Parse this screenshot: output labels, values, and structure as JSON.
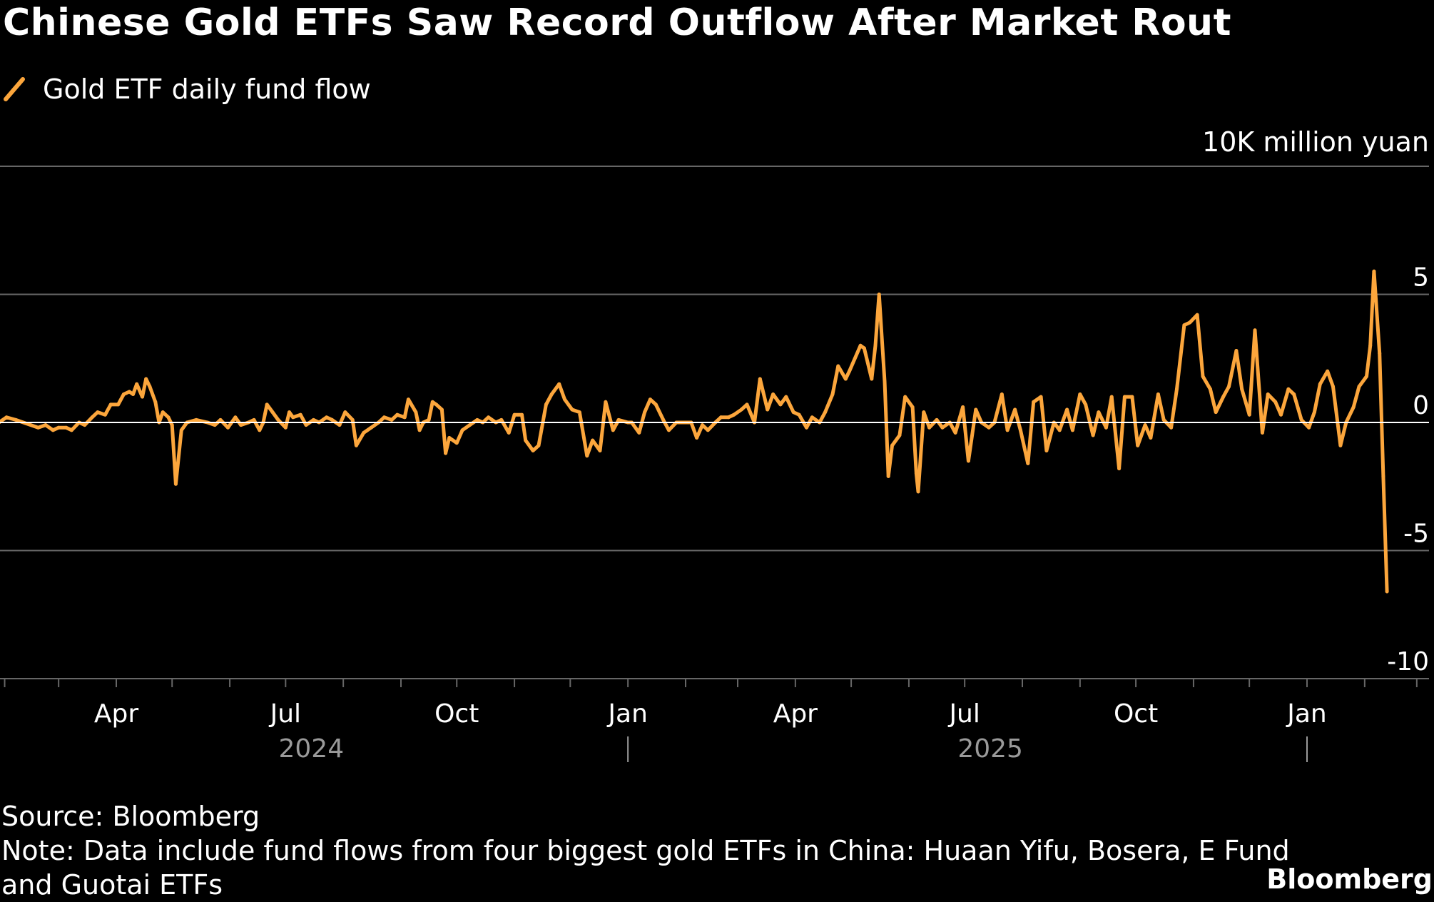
{
  "title": "Chinese Gold ETFs Saw Record Outflow After Market Rout",
  "source": "Source: Bloomberg",
  "note_line1": "Note: Data include fund flows from four biggest gold ETFs in China: Huaan Yifu, Bosera, E Fund",
  "note_line2": "and Guotai ETFs",
  "brand": "Bloomberg",
  "colors": {
    "background": "#000000",
    "series": "#fca63c",
    "grid": "#666666",
    "zero_line": "#ffffff",
    "axis_text": "#ffffff",
    "year_text": "#9a9a9a"
  },
  "chart_data": {
    "type": "line",
    "title": "Chinese Gold ETFs Saw Record Outflow After Market Rout",
    "ylabel": "10K million yuan",
    "ylim": [
      -10,
      10
    ],
    "yticks": [
      10,
      5,
      0,
      -5,
      -10
    ],
    "ytick_labels": [
      "",
      "5",
      "0",
      "-5",
      "-10"
    ],
    "xlim": [
      "2024-01-01",
      "2026-02-28"
    ],
    "xticks": [
      {
        "date": "2024-04-01",
        "label": "Apr"
      },
      {
        "date": "2024-07-01",
        "label": "Jul"
      },
      {
        "date": "2024-10-01",
        "label": "Oct"
      },
      {
        "date": "2025-01-01",
        "label": "Jan"
      },
      {
        "date": "2025-04-01",
        "label": "Apr"
      },
      {
        "date": "2025-07-01",
        "label": "Jul"
      },
      {
        "date": "2025-10-01",
        "label": "Oct"
      },
      {
        "date": "2026-01-01",
        "label": "Jan"
      }
    ],
    "year_labels": [
      {
        "date": "2024-07-01",
        "label": "2024"
      },
      {
        "date": "2025-07-01",
        "label": "2025"
      }
    ],
    "year_separators": [
      "2025-01-01",
      "2026-01-01"
    ],
    "grid": true,
    "legend": "top-left",
    "series": [
      {
        "name": "Gold ETF daily fund flow",
        "color": "#fca63c",
        "points": [
          [
            "2024-01-02",
            0.0
          ],
          [
            "2024-01-05",
            -0.1
          ],
          [
            "2024-01-10",
            0.0
          ],
          [
            "2024-01-16",
            0.0
          ],
          [
            "2024-01-22",
            0.0
          ],
          [
            "2024-01-29",
            0.0
          ],
          [
            "2024-02-02",
            0.2
          ],
          [
            "2024-02-07",
            0.1
          ],
          [
            "2024-02-19",
            -0.2
          ],
          [
            "2024-02-23",
            -0.1
          ],
          [
            "2024-02-27",
            -0.3
          ],
          [
            "2024-03-01",
            -0.2
          ],
          [
            "2024-03-05",
            -0.2
          ],
          [
            "2024-03-08",
            -0.3
          ],
          [
            "2024-03-12",
            0.0
          ],
          [
            "2024-03-15",
            -0.1
          ],
          [
            "2024-03-19",
            0.2
          ],
          [
            "2024-03-22",
            0.4
          ],
          [
            "2024-03-26",
            0.3
          ],
          [
            "2024-03-29",
            0.7
          ],
          [
            "2024-04-02",
            0.7
          ],
          [
            "2024-04-05",
            1.1
          ],
          [
            "2024-04-08",
            1.2
          ],
          [
            "2024-04-10",
            1.1
          ],
          [
            "2024-04-12",
            1.5
          ],
          [
            "2024-04-15",
            1.0
          ],
          [
            "2024-04-17",
            1.7
          ],
          [
            "2024-04-19",
            1.4
          ],
          [
            "2024-04-22",
            0.8
          ],
          [
            "2024-04-24",
            0.0
          ],
          [
            "2024-04-26",
            0.4
          ],
          [
            "2024-04-29",
            0.2
          ],
          [
            "2024-05-01",
            -0.1
          ],
          [
            "2024-05-03",
            -2.4
          ],
          [
            "2024-05-06",
            -0.3
          ],
          [
            "2024-05-09",
            0.0
          ],
          [
            "2024-05-14",
            0.1
          ],
          [
            "2024-05-20",
            0.0
          ],
          [
            "2024-05-24",
            -0.1
          ],
          [
            "2024-05-27",
            0.1
          ],
          [
            "2024-05-31",
            -0.2
          ],
          [
            "2024-06-04",
            0.2
          ],
          [
            "2024-06-07",
            -0.1
          ],
          [
            "2024-06-11",
            0.0
          ],
          [
            "2024-06-14",
            0.1
          ],
          [
            "2024-06-17",
            -0.3
          ],
          [
            "2024-06-19",
            0.0
          ],
          [
            "2024-06-21",
            0.7
          ],
          [
            "2024-06-24",
            0.4
          ],
          [
            "2024-06-27",
            0.1
          ],
          [
            "2024-07-01",
            -0.2
          ],
          [
            "2024-07-03",
            0.4
          ],
          [
            "2024-07-05",
            0.2
          ],
          [
            "2024-07-09",
            0.3
          ],
          [
            "2024-07-12",
            -0.1
          ],
          [
            "2024-07-16",
            0.1
          ],
          [
            "2024-07-19",
            0.0
          ],
          [
            "2024-07-23",
            0.2
          ],
          [
            "2024-07-26",
            0.1
          ],
          [
            "2024-07-30",
            -0.1
          ],
          [
            "2024-08-02",
            0.4
          ],
          [
            "2024-08-06",
            0.1
          ],
          [
            "2024-08-08",
            -0.9
          ],
          [
            "2024-08-12",
            -0.4
          ],
          [
            "2024-08-16",
            -0.2
          ],
          [
            "2024-08-20",
            0.0
          ],
          [
            "2024-08-23",
            0.2
          ],
          [
            "2024-08-27",
            0.1
          ],
          [
            "2024-08-30",
            0.3
          ],
          [
            "2024-09-03",
            0.2
          ],
          [
            "2024-09-05",
            0.9
          ],
          [
            "2024-09-09",
            0.4
          ],
          [
            "2024-09-11",
            -0.3
          ],
          [
            "2024-09-13",
            0.0
          ],
          [
            "2024-09-16",
            0.1
          ],
          [
            "2024-09-18",
            0.8
          ],
          [
            "2024-09-20",
            0.7
          ],
          [
            "2024-09-23",
            0.5
          ],
          [
            "2024-09-25",
            -1.2
          ],
          [
            "2024-09-27",
            -0.6
          ],
          [
            "2024-10-01",
            -0.8
          ],
          [
            "2024-10-04",
            -0.3
          ],
          [
            "2024-10-08",
            -0.1
          ],
          [
            "2024-10-12",
            0.1
          ],
          [
            "2024-10-15",
            0.0
          ],
          [
            "2024-10-18",
            0.2
          ],
          [
            "2024-10-22",
            0.0
          ],
          [
            "2024-10-25",
            0.1
          ],
          [
            "2024-10-29",
            -0.4
          ],
          [
            "2024-11-01",
            0.3
          ],
          [
            "2024-11-05",
            0.3
          ],
          [
            "2024-11-07",
            -0.7
          ],
          [
            "2024-11-11",
            -1.1
          ],
          [
            "2024-11-14",
            -0.9
          ],
          [
            "2024-11-18",
            0.7
          ],
          [
            "2024-11-21",
            1.1
          ],
          [
            "2024-11-25",
            1.5
          ],
          [
            "2024-11-28",
            0.9
          ],
          [
            "2024-12-02",
            0.5
          ],
          [
            "2024-12-06",
            0.4
          ],
          [
            "2024-12-10",
            -1.3
          ],
          [
            "2024-12-13",
            -0.7
          ],
          [
            "2024-12-17",
            -1.1
          ],
          [
            "2024-12-20",
            0.8
          ],
          [
            "2024-12-24",
            -0.3
          ],
          [
            "2024-12-27",
            0.1
          ],
          [
            "2025-01-01",
            0.0
          ],
          [
            "2025-01-03",
            0.0
          ],
          [
            "2025-01-07",
            -0.4
          ],
          [
            "2025-01-10",
            0.4
          ],
          [
            "2025-01-13",
            0.9
          ],
          [
            "2025-01-16",
            0.7
          ],
          [
            "2025-01-20",
            0.1
          ],
          [
            "2025-01-23",
            -0.3
          ],
          [
            "2025-01-27",
            0.0
          ],
          [
            "2025-02-04",
            0.0
          ],
          [
            "2025-02-07",
            -0.6
          ],
          [
            "2025-02-10",
            -0.1
          ],
          [
            "2025-02-13",
            -0.3
          ],
          [
            "2025-02-17",
            0.0
          ],
          [
            "2025-02-20",
            0.2
          ],
          [
            "2025-02-24",
            0.2
          ],
          [
            "2025-02-27",
            0.3
          ],
          [
            "2025-03-03",
            0.5
          ],
          [
            "2025-03-06",
            0.7
          ],
          [
            "2025-03-10",
            0.0
          ],
          [
            "2025-03-13",
            1.7
          ],
          [
            "2025-03-17",
            0.5
          ],
          [
            "2025-03-20",
            1.1
          ],
          [
            "2025-03-24",
            0.7
          ],
          [
            "2025-03-27",
            1.0
          ],
          [
            "2025-03-31",
            0.4
          ],
          [
            "2025-04-03",
            0.3
          ],
          [
            "2025-04-07",
            -0.2
          ],
          [
            "2025-04-10",
            0.2
          ],
          [
            "2025-04-14",
            0.0
          ],
          [
            "2025-04-17",
            0.4
          ],
          [
            "2025-04-21",
            1.1
          ],
          [
            "2025-04-24",
            2.2
          ],
          [
            "2025-04-28",
            1.7
          ],
          [
            "2025-04-30",
            2.0
          ],
          [
            "2025-05-06",
            3.0
          ],
          [
            "2025-05-08",
            2.9
          ],
          [
            "2025-05-12",
            1.7
          ],
          [
            "2025-05-14",
            3.0
          ],
          [
            "2025-05-16",
            5.0
          ],
          [
            "2025-05-19",
            1.6
          ],
          [
            "2025-05-21",
            -2.1
          ],
          [
            "2025-05-23",
            -0.9
          ],
          [
            "2025-05-27",
            -0.5
          ],
          [
            "2025-05-30",
            1.0
          ],
          [
            "2025-06-03",
            0.6
          ],
          [
            "2025-06-05",
            -2.0
          ],
          [
            "2025-06-06",
            -2.7
          ],
          [
            "2025-06-09",
            0.4
          ],
          [
            "2025-06-12",
            -0.2
          ],
          [
            "2025-06-16",
            0.1
          ],
          [
            "2025-06-19",
            -0.2
          ],
          [
            "2025-06-23",
            0.0
          ],
          [
            "2025-06-26",
            -0.4
          ],
          [
            "2025-06-30",
            0.6
          ],
          [
            "2025-07-03",
            -1.5
          ],
          [
            "2025-07-07",
            0.5
          ],
          [
            "2025-07-10",
            0.0
          ],
          [
            "2025-07-14",
            -0.2
          ],
          [
            "2025-07-17",
            0.0
          ],
          [
            "2025-07-21",
            1.1
          ],
          [
            "2025-07-24",
            -0.3
          ],
          [
            "2025-07-28",
            0.5
          ],
          [
            "2025-07-31",
            -0.3
          ],
          [
            "2025-08-04",
            -1.6
          ],
          [
            "2025-08-07",
            0.8
          ],
          [
            "2025-08-11",
            1.0
          ],
          [
            "2025-08-14",
            -1.1
          ],
          [
            "2025-08-18",
            0.0
          ],
          [
            "2025-08-21",
            -0.3
          ],
          [
            "2025-08-25",
            0.5
          ],
          [
            "2025-08-28",
            -0.3
          ],
          [
            "2025-09-01",
            1.1
          ],
          [
            "2025-09-04",
            0.7
          ],
          [
            "2025-09-08",
            -0.5
          ],
          [
            "2025-09-11",
            0.4
          ],
          [
            "2025-09-15",
            -0.2
          ],
          [
            "2025-09-18",
            1.0
          ],
          [
            "2025-09-22",
            -1.8
          ],
          [
            "2025-09-25",
            1.0
          ],
          [
            "2025-09-29",
            1.0
          ],
          [
            "2025-10-02",
            -0.9
          ],
          [
            "2025-10-06",
            -0.1
          ],
          [
            "2025-10-09",
            -0.6
          ],
          [
            "2025-10-13",
            1.1
          ],
          [
            "2025-10-16",
            0.1
          ],
          [
            "2025-10-20",
            -0.2
          ],
          [
            "2025-10-23",
            1.3
          ],
          [
            "2025-10-27",
            3.8
          ],
          [
            "2025-10-30",
            3.9
          ],
          [
            "2025-11-03",
            4.2
          ],
          [
            "2025-11-06",
            1.8
          ],
          [
            "2025-11-10",
            1.3
          ],
          [
            "2025-11-13",
            0.4
          ],
          [
            "2025-11-17",
            1.0
          ],
          [
            "2025-11-20",
            1.4
          ],
          [
            "2025-11-24",
            2.8
          ],
          [
            "2025-11-27",
            1.3
          ],
          [
            "2025-12-01",
            0.3
          ],
          [
            "2025-12-04",
            3.6
          ],
          [
            "2025-12-08",
            -0.4
          ],
          [
            "2025-12-11",
            1.1
          ],
          [
            "2025-12-15",
            0.8
          ],
          [
            "2025-12-18",
            0.3
          ],
          [
            "2025-12-22",
            1.3
          ],
          [
            "2025-12-25",
            1.1
          ],
          [
            "2025-12-29",
            0.1
          ],
          [
            "2026-01-02",
            -0.2
          ],
          [
            "2026-01-05",
            0.4
          ],
          [
            "2026-01-08",
            1.5
          ],
          [
            "2026-01-12",
            2.0
          ],
          [
            "2026-01-15",
            1.4
          ],
          [
            "2026-01-19",
            -0.9
          ],
          [
            "2026-01-22",
            0.0
          ],
          [
            "2026-01-26",
            0.6
          ],
          [
            "2026-01-29",
            1.4
          ],
          [
            "2026-02-02",
            1.8
          ],
          [
            "2026-02-04",
            3.0
          ],
          [
            "2026-02-06",
            5.9
          ],
          [
            "2026-02-09",
            2.7
          ],
          [
            "2026-02-11",
            -2.1
          ],
          [
            "2026-02-13",
            -6.6
          ]
        ]
      }
    ]
  }
}
